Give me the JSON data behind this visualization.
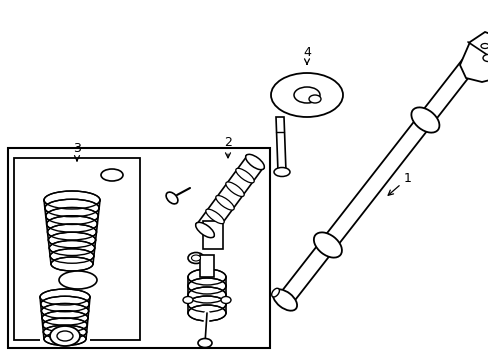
{
  "background_color": "#ffffff",
  "line_color": "#000000",
  "line_width": 1.3,
  "fig_width": 4.89,
  "fig_height": 3.6,
  "dpi": 100
}
